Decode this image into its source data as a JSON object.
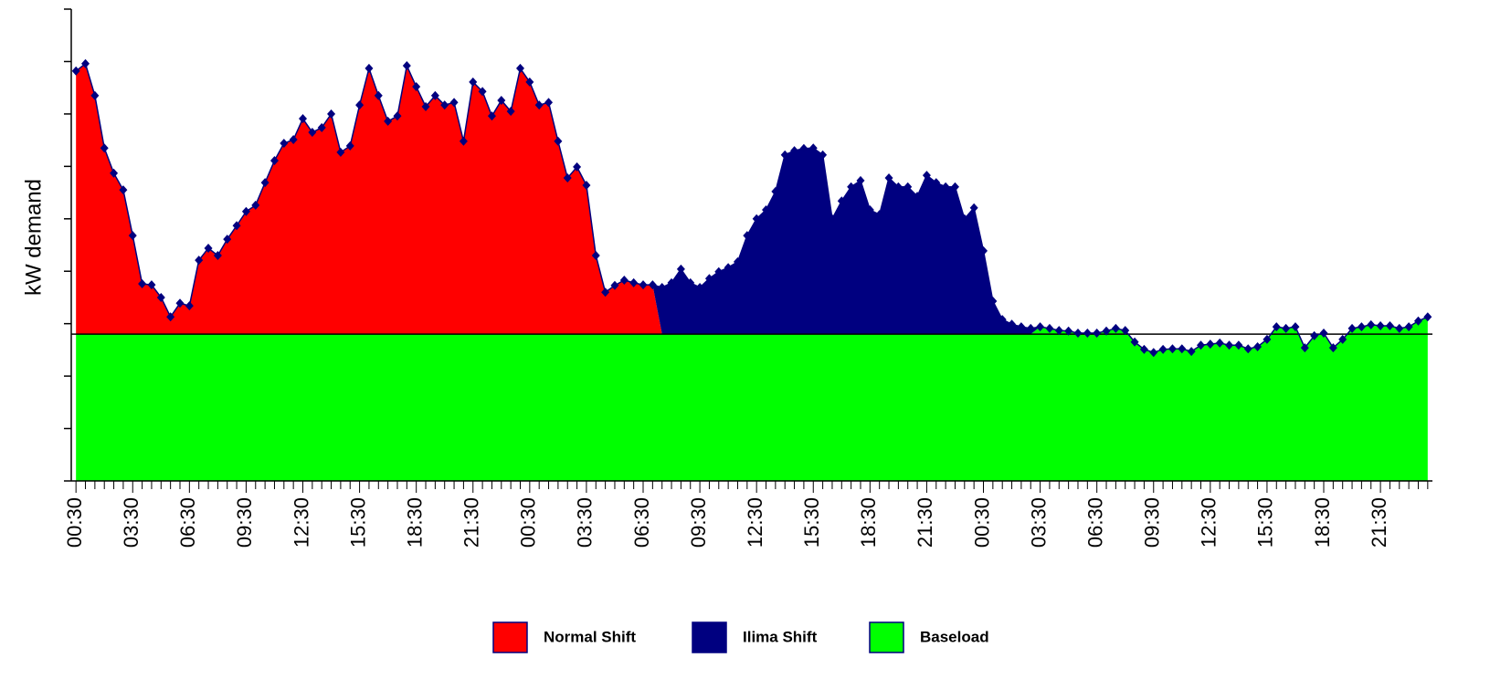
{
  "chart_data": {
    "type": "stacked_area",
    "y_label": "kW demand",
    "categories": [
      "00:30",
      null,
      null,
      null,
      null,
      null,
      "03:30",
      null,
      null,
      null,
      null,
      null,
      "06:30",
      null,
      null,
      null,
      null,
      null,
      "09:30",
      null,
      null,
      null,
      null,
      null,
      "12:30",
      null,
      null,
      null,
      null,
      null,
      "15:30",
      null,
      null,
      null,
      null,
      null,
      "18:30",
      null,
      null,
      null,
      null,
      null,
      "21:30",
      null,
      null,
      null,
      null,
      null,
      "00:30",
      null,
      null,
      null,
      null,
      null,
      "03:30",
      null,
      null,
      null,
      null,
      null,
      "06:30",
      null,
      null,
      null,
      null,
      null,
      "09:30",
      null,
      null,
      null,
      null,
      null,
      "12:30",
      null,
      null,
      null,
      null,
      null,
      "15:30",
      null,
      null,
      null,
      null,
      null,
      "18:30",
      null,
      null,
      null,
      null,
      null,
      "21:30",
      null,
      null,
      null,
      null,
      null,
      "00:30",
      null,
      null,
      null,
      null,
      null,
      "03:30",
      null,
      null,
      null,
      null,
      null,
      "06:30",
      null,
      null,
      null,
      null,
      null,
      "09:30",
      null,
      null,
      null,
      null,
      null,
      "12:30",
      null,
      null,
      null,
      null,
      null,
      "15:30",
      null,
      null,
      null,
      null,
      null,
      "18:30",
      null,
      null,
      null,
      null,
      null,
      "21:30",
      null,
      null,
      null,
      null,
      null
    ],
    "series": [
      {
        "name": "Baseload",
        "color": "#00ff00",
        "values": [
          2.8,
          2.8,
          2.8,
          2.8,
          2.8,
          2.8,
          2.8,
          2.8,
          2.8,
          2.8,
          2.8,
          2.8,
          2.8,
          2.8,
          2.8,
          2.8,
          2.8,
          2.8,
          2.8,
          2.8,
          2.8,
          2.8,
          2.8,
          2.8,
          2.8,
          2.8,
          2.8,
          2.8,
          2.8,
          2.8,
          2.8,
          2.8,
          2.8,
          2.8,
          2.8,
          2.8,
          2.8,
          2.8,
          2.8,
          2.8,
          2.8,
          2.8,
          2.8,
          2.8,
          2.8,
          2.8,
          2.8,
          2.8,
          2.8,
          2.8,
          2.8,
          2.8,
          2.8,
          2.8,
          2.8,
          2.8,
          2.8,
          2.8,
          2.8,
          2.8,
          2.8,
          2.8,
          2.8,
          2.8,
          2.8,
          2.8,
          2.8,
          2.8,
          2.8,
          2.8,
          2.8,
          2.8,
          2.8,
          2.8,
          2.8,
          2.8,
          2.8,
          2.8,
          2.8,
          2.8,
          2.8,
          2.8,
          2.8,
          2.8,
          2.8,
          2.8,
          2.8,
          2.8,
          2.8,
          2.8,
          2.8,
          2.8,
          2.8,
          2.8,
          2.8,
          2.8,
          2.8,
          2.8,
          2.8,
          2.8,
          2.8,
          2.8,
          2.94,
          2.91,
          2.87,
          2.86,
          2.82,
          2.82,
          2.82,
          2.86,
          2.91,
          2.87,
          2.65,
          2.51,
          2.45,
          2.51,
          2.52,
          2.52,
          2.47,
          2.59,
          2.61,
          2.63,
          2.59,
          2.59,
          2.52,
          2.56,
          2.7,
          2.94,
          2.91,
          2.94,
          2.54,
          2.77,
          2.82,
          2.54,
          2.7,
          2.91,
          2.94,
          2.98,
          2.96,
          2.96,
          2.91,
          2.94,
          3.05,
          3.13
        ]
      },
      {
        "name": "Normal Shift",
        "color": "#ff0000",
        "values": [
          5.02,
          5.16,
          4.55,
          3.55,
          3.07,
          2.75,
          1.88,
          0.96,
          0.94,
          0.7,
          0.33,
          0.59,
          0.54,
          1.41,
          1.64,
          1.5,
          1.81,
          2.07,
          2.34,
          2.46,
          2.89,
          3.31,
          3.64,
          3.71,
          4.11,
          3.85,
          3.94,
          4.2,
          3.47,
          3.59,
          4.37,
          5.07,
          4.55,
          4.06,
          4.16,
          5.12,
          4.72,
          4.34,
          4.55,
          4.37,
          4.42,
          3.68,
          4.81,
          4.63,
          4.16,
          4.46,
          4.25,
          5.07,
          4.81,
          4.37,
          4.42,
          3.68,
          2.98,
          3.19,
          2.84,
          1.5,
          0.8,
          0.93,
          1.03,
          0.98,
          0.94,
          0.94,
          0,
          0,
          0,
          0,
          0,
          0,
          0,
          0,
          0,
          0,
          0,
          0,
          0,
          0,
          0,
          0,
          0,
          0,
          0,
          0,
          0,
          0,
          0,
          0,
          0,
          0,
          0,
          0,
          0,
          0,
          0,
          0,
          0,
          0,
          0,
          0,
          0,
          0,
          0,
          0,
          0,
          0,
          0,
          0,
          0,
          0,
          0,
          0,
          0,
          0,
          0,
          0,
          0,
          0,
          0,
          0,
          0,
          0,
          0,
          0,
          0,
          0,
          0,
          0,
          0,
          0,
          0,
          0,
          0,
          0,
          0,
          0,
          0,
          0,
          0,
          0,
          0,
          0,
          0,
          0,
          0,
          0
        ]
      },
      {
        "name": "Ilima Shift",
        "color": "#000080",
        "values": [
          0,
          0,
          0,
          0,
          0,
          0,
          0,
          0,
          0,
          0,
          0,
          0,
          0,
          0,
          0,
          0,
          0,
          0,
          0,
          0,
          0,
          0,
          0,
          0,
          0,
          0,
          0,
          0,
          0,
          0,
          0,
          0,
          0,
          0,
          0,
          0,
          0,
          0,
          0,
          0,
          0,
          0,
          0,
          0,
          0,
          0,
          0,
          0,
          0,
          0,
          0,
          0,
          0,
          0,
          0,
          0,
          0,
          0,
          0,
          0,
          0,
          0,
          0.89,
          0.98,
          1.24,
          0.98,
          0.89,
          1.06,
          1.19,
          1.27,
          1.38,
          1.88,
          2.2,
          2.37,
          2.72,
          3.42,
          3.5,
          3.54,
          3.55,
          3.42,
          2.2,
          2.54,
          2.81,
          2.93,
          2.37,
          2.28,
          2.98,
          2.81,
          2.81,
          2.63,
          3.03,
          2.89,
          2.81,
          2.81,
          2.2,
          2.41,
          1.59,
          0.63,
          0.28,
          0.19,
          0.14,
          0.11,
          0,
          0,
          0,
          0,
          0,
          0,
          0,
          0,
          0,
          0,
          0,
          0,
          0,
          0,
          0,
          0,
          0,
          0,
          0,
          0,
          0,
          0,
          0,
          0,
          0,
          0,
          0,
          0,
          0,
          0,
          0,
          0,
          0,
          0,
          0,
          0,
          0,
          0,
          0,
          0,
          0,
          0
        ]
      }
    ],
    "legend_order": [
      1,
      2,
      0
    ],
    "reference_line": 2.8,
    "line_color": "#00007f",
    "ylim": [
      0,
      9
    ],
    "yticks": [
      0,
      1,
      2,
      3,
      4,
      5,
      6,
      7,
      8,
      9
    ],
    "legend": "bottom"
  }
}
